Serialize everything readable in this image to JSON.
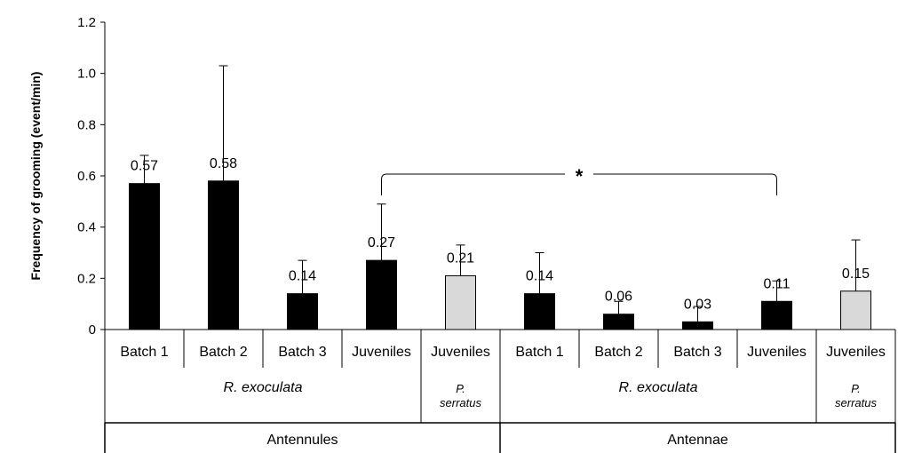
{
  "chart_data": {
    "type": "bar",
    "ylabel": "Frequency of grooming (event/min)",
    "ylim": [
      0,
      1.2
    ],
    "yticks": [
      "0",
      "0.2",
      "0.4",
      "0.6",
      "0.8",
      "1.0",
      "1.2"
    ],
    "ytick_values": [
      0,
      0.2,
      0.4,
      0.6,
      0.8,
      1.0,
      1.2
    ],
    "grid": false,
    "categories": [
      "Batch 1",
      "Batch 2",
      "Batch 3",
      "Juveniles",
      "Juveniles",
      "Batch 1",
      "Batch 2",
      "Batch 3",
      "Juveniles",
      "Juveniles"
    ],
    "values": [
      0.57,
      0.58,
      0.14,
      0.27,
      0.21,
      0.14,
      0.06,
      0.03,
      0.11,
      0.15
    ],
    "labels": [
      "0.57",
      "0.58",
      "0.14",
      "0.27",
      "0.21",
      "0.14",
      "0.06",
      "0.03",
      "0.11",
      "0.15"
    ],
    "error_upper": [
      0.68,
      1.03,
      0.27,
      0.49,
      0.33,
      0.3,
      0.11,
      0.09,
      0.19,
      0.35
    ],
    "bar_colors": [
      "#000000",
      "#000000",
      "#000000",
      "#000000",
      "#d9d9d9",
      "#000000",
      "#000000",
      "#000000",
      "#000000",
      "#d9d9d9"
    ],
    "species_groups": [
      {
        "label": "R. exoculata",
        "span": 4
      },
      {
        "label": "P. serratus",
        "span": 1
      },
      {
        "label": "R. exoculata",
        "span": 4
      },
      {
        "label": "P. serratus",
        "span": 1
      }
    ],
    "organ_groups": [
      {
        "label": "Antennules",
        "span": 5
      },
      {
        "label": "Antennae",
        "span": 5
      }
    ],
    "significance": {
      "from": 3,
      "to": 8,
      "label": "*"
    }
  }
}
